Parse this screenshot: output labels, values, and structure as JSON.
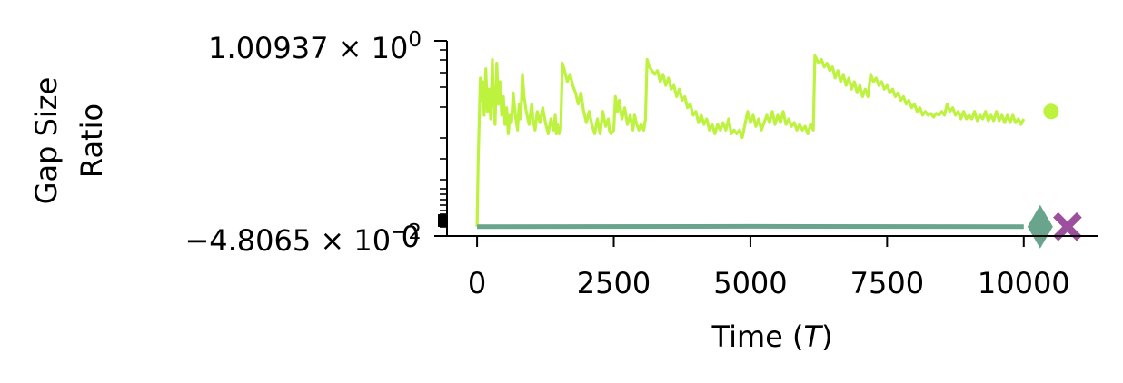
{
  "chart_data": {
    "type": "line",
    "xlabel": "Time (T)",
    "xlabel_parts": {
      "prefix": "Time (",
      "var": "T",
      "suffix": ")"
    },
    "ylabel_lines": [
      "Gap Size",
      "Ratio"
    ],
    "x_ticks": [
      0,
      2500,
      5000,
      7500,
      10000
    ],
    "x_tick_labels": [
      "0",
      "2500",
      "5000",
      "7500",
      "10000"
    ],
    "xlim": [
      -550,
      11350
    ],
    "y_scale": "symlog",
    "y_tick_labels": [
      {
        "mantissa": "1.00937",
        "exponent": "0"
      },
      {
        "mantissa": "−4.8065",
        "exponent": "−2"
      }
    ],
    "y_overlap_label": "0",
    "spines": "left-bottom",
    "grid": false,
    "series": [
      {
        "color": "#bdf23f",
        "end_marker": "circle",
        "end_marker_x": 10500,
        "end_marker_y": 0.62,
        "points": [
          [
            0,
            0.0
          ],
          [
            20,
            0.35
          ],
          [
            40,
            0.58
          ],
          [
            60,
            0.8
          ],
          [
            80,
            0.68
          ],
          [
            100,
            0.78
          ],
          [
            130,
            0.6
          ],
          [
            160,
            0.85
          ],
          [
            190,
            0.62
          ],
          [
            220,
            0.74
          ],
          [
            250,
            0.58
          ],
          [
            280,
            0.9
          ],
          [
            300,
            0.7
          ],
          [
            330,
            0.55
          ],
          [
            360,
            0.88
          ],
          [
            390,
            0.66
          ],
          [
            420,
            0.78
          ],
          [
            450,
            0.6
          ],
          [
            480,
            0.7
          ],
          [
            510,
            0.55
          ],
          [
            540,
            0.64
          ],
          [
            570,
            0.5
          ],
          [
            600,
            0.6
          ],
          [
            630,
            0.56
          ],
          [
            660,
            0.72
          ],
          [
            700,
            0.6
          ],
          [
            740,
            0.52
          ],
          [
            770,
            0.66
          ],
          [
            800,
            0.58
          ],
          [
            830,
            0.82
          ],
          [
            860,
            0.7
          ],
          [
            900,
            0.62
          ],
          [
            950,
            0.55
          ],
          [
            1000,
            0.66
          ],
          [
            1020,
            0.58
          ],
          [
            1060,
            0.52
          ],
          [
            1100,
            0.62
          ],
          [
            1150,
            0.56
          ],
          [
            1200,
            0.64
          ],
          [
            1250,
            0.56
          ],
          [
            1300,
            0.5
          ],
          [
            1350,
            0.58
          ],
          [
            1400,
            0.52
          ],
          [
            1430,
            0.6
          ],
          [
            1450,
            0.5
          ],
          [
            1470,
            0.55
          ],
          [
            1500,
            0.5
          ],
          [
            1530,
            0.52
          ],
          [
            1560,
            0.88
          ],
          [
            1600,
            0.84
          ],
          [
            1650,
            0.78
          ],
          [
            1700,
            0.82
          ],
          [
            1750,
            0.76
          ],
          [
            1800,
            0.72
          ],
          [
            1850,
            0.66
          ],
          [
            1900,
            0.72
          ],
          [
            1950,
            0.62
          ],
          [
            2000,
            0.56
          ],
          [
            2050,
            0.62
          ],
          [
            2100,
            0.55
          ],
          [
            2150,
            0.5
          ],
          [
            2200,
            0.58
          ],
          [
            2250,
            0.5
          ],
          [
            2300,
            0.62
          ],
          [
            2350,
            0.54
          ],
          [
            2400,
            0.58
          ],
          [
            2420,
            0.52
          ],
          [
            2450,
            0.5
          ],
          [
            2500,
            0.52
          ],
          [
            2530,
            0.7
          ],
          [
            2570,
            0.62
          ],
          [
            2600,
            0.68
          ],
          [
            2650,
            0.58
          ],
          [
            2700,
            0.64
          ],
          [
            2750,
            0.55
          ],
          [
            2800,
            0.6
          ],
          [
            2850,
            0.52
          ],
          [
            2880,
            0.6
          ],
          [
            2920,
            0.55
          ],
          [
            2960,
            0.52
          ],
          [
            3000,
            0.55
          ],
          [
            3050,
            0.52
          ],
          [
            3080,
            0.58
          ],
          [
            3110,
            0.9
          ],
          [
            3150,
            0.86
          ],
          [
            3200,
            0.84
          ],
          [
            3250,
            0.82
          ],
          [
            3300,
            0.84
          ],
          [
            3350,
            0.78
          ],
          [
            3400,
            0.82
          ],
          [
            3450,
            0.76
          ],
          [
            3500,
            0.8
          ],
          [
            3550,
            0.74
          ],
          [
            3600,
            0.76
          ],
          [
            3650,
            0.7
          ],
          [
            3700,
            0.74
          ],
          [
            3750,
            0.68
          ],
          [
            3800,
            0.7
          ],
          [
            3850,
            0.64
          ],
          [
            3900,
            0.66
          ],
          [
            3950,
            0.6
          ],
          [
            4000,
            0.62
          ],
          [
            4050,
            0.56
          ],
          [
            4100,
            0.6
          ],
          [
            4150,
            0.55
          ],
          [
            4200,
            0.58
          ],
          [
            4250,
            0.52
          ],
          [
            4300,
            0.55
          ],
          [
            4350,
            0.5
          ],
          [
            4400,
            0.55
          ],
          [
            4450,
            0.52
          ],
          [
            4500,
            0.56
          ],
          [
            4550,
            0.52
          ],
          [
            4600,
            0.58
          ],
          [
            4650,
            0.5
          ],
          [
            4700,
            0.52
          ],
          [
            4750,
            0.5
          ],
          [
            4800,
            0.52
          ],
          [
            4850,
            0.48
          ],
          [
            4900,
            0.55
          ],
          [
            4950,
            0.62
          ],
          [
            5000,
            0.56
          ],
          [
            5050,
            0.6
          ],
          [
            5100,
            0.54
          ],
          [
            5150,
            0.58
          ],
          [
            5200,
            0.52
          ],
          [
            5250,
            0.56
          ],
          [
            5300,
            0.6
          ],
          [
            5350,
            0.56
          ],
          [
            5400,
            0.62
          ],
          [
            5450,
            0.55
          ],
          [
            5500,
            0.6
          ],
          [
            5550,
            0.56
          ],
          [
            5600,
            0.62
          ],
          [
            5650,
            0.55
          ],
          [
            5700,
            0.58
          ],
          [
            5750,
            0.54
          ],
          [
            5800,
            0.56
          ],
          [
            5850,
            0.52
          ],
          [
            5900,
            0.55
          ],
          [
            5950,
            0.52
          ],
          [
            6000,
            0.54
          ],
          [
            6050,
            0.5
          ],
          [
            6100,
            0.55
          ],
          [
            6150,
            0.52
          ],
          [
            6180,
            0.92
          ],
          [
            6250,
            0.88
          ],
          [
            6300,
            0.9
          ],
          [
            6350,
            0.86
          ],
          [
            6400,
            0.88
          ],
          [
            6450,
            0.84
          ],
          [
            6500,
            0.86
          ],
          [
            6550,
            0.8
          ],
          [
            6600,
            0.84
          ],
          [
            6650,
            0.78
          ],
          [
            6700,
            0.82
          ],
          [
            6750,
            0.76
          ],
          [
            6800,
            0.8
          ],
          [
            6850,
            0.74
          ],
          [
            6900,
            0.78
          ],
          [
            6950,
            0.72
          ],
          [
            7000,
            0.76
          ],
          [
            7050,
            0.7
          ],
          [
            7100,
            0.74
          ],
          [
            7150,
            0.7
          ],
          [
            7200,
            0.82
          ],
          [
            7250,
            0.78
          ],
          [
            7300,
            0.8
          ],
          [
            7350,
            0.76
          ],
          [
            7400,
            0.78
          ],
          [
            7450,
            0.74
          ],
          [
            7500,
            0.76
          ],
          [
            7550,
            0.72
          ],
          [
            7600,
            0.74
          ],
          [
            7650,
            0.7
          ],
          [
            7700,
            0.72
          ],
          [
            7750,
            0.68
          ],
          [
            7800,
            0.7
          ],
          [
            7850,
            0.66
          ],
          [
            7900,
            0.68
          ],
          [
            7950,
            0.64
          ],
          [
            8000,
            0.66
          ],
          [
            8050,
            0.62
          ],
          [
            8100,
            0.64
          ],
          [
            8150,
            0.6
          ],
          [
            8200,
            0.62
          ],
          [
            8250,
            0.6
          ],
          [
            8300,
            0.61
          ],
          [
            8350,
            0.59
          ],
          [
            8400,
            0.61
          ],
          [
            8450,
            0.6
          ],
          [
            8500,
            0.62
          ],
          [
            8550,
            0.6
          ],
          [
            8600,
            0.66
          ],
          [
            8650,
            0.62
          ],
          [
            8700,
            0.64
          ],
          [
            8750,
            0.6
          ],
          [
            8800,
            0.62
          ],
          [
            8850,
            0.58
          ],
          [
            8900,
            0.62
          ],
          [
            8950,
            0.58
          ],
          [
            9000,
            0.6
          ],
          [
            9050,
            0.58
          ],
          [
            9100,
            0.62
          ],
          [
            9150,
            0.57
          ],
          [
            9200,
            0.6
          ],
          [
            9250,
            0.58
          ],
          [
            9300,
            0.62
          ],
          [
            9350,
            0.57
          ],
          [
            9400,
            0.6
          ],
          [
            9450,
            0.57
          ],
          [
            9500,
            0.62
          ],
          [
            9550,
            0.57
          ],
          [
            9600,
            0.6
          ],
          [
            9650,
            0.56
          ],
          [
            9700,
            0.6
          ],
          [
            9750,
            0.56
          ],
          [
            9800,
            0.6
          ],
          [
            9850,
            0.56
          ],
          [
            9900,
            0.58
          ],
          [
            9950,
            0.55
          ],
          [
            10000,
            0.58
          ]
        ]
      },
      {
        "color": "#68a58c",
        "end_marker": "diamond",
        "end_marker_x": 10300,
        "end_marker_y": 0.0,
        "points": [
          [
            0,
            0.0
          ],
          [
            5000,
            0.002
          ],
          [
            10000,
            0.0
          ]
        ]
      },
      {
        "color": "#9b4f9c",
        "end_marker": "x",
        "end_marker_x": 10800,
        "end_marker_y": 0.0,
        "points": []
      }
    ]
  }
}
